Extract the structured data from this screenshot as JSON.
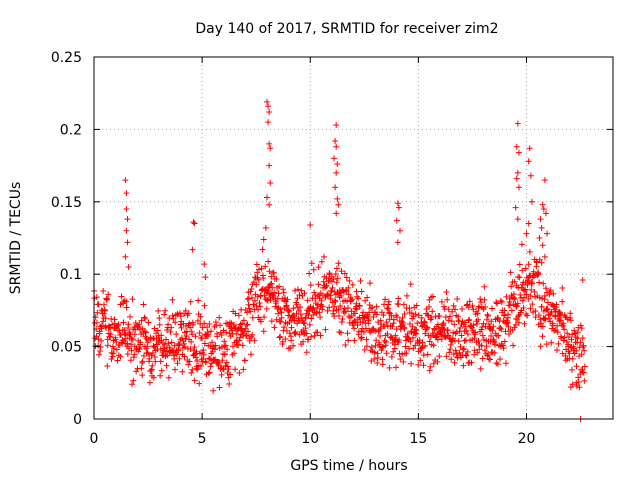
{
  "chart_data": {
    "type": "scatter",
    "title": "Day 140 of 2017, SRMTID for receiver zim2",
    "xlabel": "GPS time / hours",
    "ylabel": "SRMTID / TECUs",
    "xlim": [
      0,
      24
    ],
    "ylim": [
      0,
      0.25
    ],
    "xticks": [
      0,
      5,
      10,
      15,
      20
    ],
    "xtick_labels": [
      "0",
      "5",
      "10",
      "15",
      "20"
    ],
    "yticks": [
      0,
      0.05,
      0.1,
      0.15,
      0.2,
      0.25
    ],
    "ytick_labels": [
      "0",
      "0.05",
      "0.1",
      "0.15",
      "0.2",
      "0.25"
    ],
    "grid": true,
    "marker": "+",
    "series": [
      {
        "name": "SRMTID",
        "color": "#ff0000",
        "profile": [
          [
            0.0,
            0.064
          ],
          [
            0.5,
            0.068
          ],
          [
            1.0,
            0.058
          ],
          [
            1.5,
            0.062
          ],
          [
            2.0,
            0.052
          ],
          [
            2.5,
            0.046
          ],
          [
            3.0,
            0.05
          ],
          [
            3.5,
            0.055
          ],
          [
            4.0,
            0.057
          ],
          [
            4.5,
            0.053
          ],
          [
            5.0,
            0.052
          ],
          [
            5.5,
            0.045
          ],
          [
            6.0,
            0.047
          ],
          [
            6.5,
            0.053
          ],
          [
            7.0,
            0.058
          ],
          [
            7.5,
            0.08
          ],
          [
            8.0,
            0.092
          ],
          [
            8.5,
            0.078
          ],
          [
            9.0,
            0.066
          ],
          [
            9.5,
            0.068
          ],
          [
            10.0,
            0.072
          ],
          [
            10.5,
            0.082
          ],
          [
            11.0,
            0.088
          ],
          [
            11.5,
            0.08
          ],
          [
            12.0,
            0.073
          ],
          [
            12.5,
            0.065
          ],
          [
            13.0,
            0.062
          ],
          [
            13.5,
            0.06
          ],
          [
            14.0,
            0.063
          ],
          [
            14.5,
            0.06
          ],
          [
            15.0,
            0.058
          ],
          [
            15.5,
            0.063
          ],
          [
            16.0,
            0.062
          ],
          [
            16.5,
            0.06
          ],
          [
            17.0,
            0.058
          ],
          [
            17.5,
            0.063
          ],
          [
            18.0,
            0.06
          ],
          [
            18.5,
            0.058
          ],
          [
            19.0,
            0.063
          ],
          [
            19.5,
            0.082
          ],
          [
            20.0,
            0.092
          ],
          [
            20.5,
            0.088
          ],
          [
            21.0,
            0.075
          ],
          [
            21.5,
            0.065
          ],
          [
            22.0,
            0.05
          ],
          [
            22.5,
            0.042
          ],
          [
            22.7,
            0.04
          ]
        ],
        "spikes": [
          [
            1.45,
            0.165
          ],
          [
            1.5,
            0.156
          ],
          [
            1.5,
            0.145
          ],
          [
            1.55,
            0.138
          ],
          [
            1.5,
            0.13
          ],
          [
            1.55,
            0.122
          ],
          [
            1.6,
            0.105
          ],
          [
            1.45,
            0.112
          ],
          [
            4.6,
            0.136
          ],
          [
            4.65,
            0.135
          ],
          [
            4.55,
            0.117
          ],
          [
            5.1,
            0.107
          ],
          [
            5.15,
            0.098
          ],
          [
            8.0,
            0.219
          ],
          [
            8.05,
            0.216
          ],
          [
            8.1,
            0.212
          ],
          [
            8.05,
            0.205
          ],
          [
            8.1,
            0.19
          ],
          [
            8.15,
            0.187
          ],
          [
            8.1,
            0.175
          ],
          [
            8.15,
            0.163
          ],
          [
            8.0,
            0.153
          ],
          [
            8.1,
            0.148
          ],
          [
            7.95,
            0.132
          ],
          [
            7.85,
            0.124
          ],
          [
            11.2,
            0.203
          ],
          [
            11.15,
            0.192
          ],
          [
            11.2,
            0.188
          ],
          [
            11.1,
            0.18
          ],
          [
            11.25,
            0.176
          ],
          [
            11.2,
            0.17
          ],
          [
            11.15,
            0.16
          ],
          [
            11.25,
            0.152
          ],
          [
            11.3,
            0.148
          ],
          [
            11.2,
            0.142
          ],
          [
            10.0,
            0.134
          ],
          [
            14.05,
            0.149
          ],
          [
            14.1,
            0.146
          ],
          [
            14.0,
            0.137
          ],
          [
            14.15,
            0.13
          ],
          [
            14.05,
            0.122
          ],
          [
            19.6,
            0.204
          ],
          [
            19.55,
            0.188
          ],
          [
            19.65,
            0.184
          ],
          [
            19.6,
            0.17
          ],
          [
            19.55,
            0.166
          ],
          [
            19.65,
            0.16
          ],
          [
            19.5,
            0.146
          ],
          [
            19.6,
            0.138
          ],
          [
            20.15,
            0.187
          ],
          [
            20.1,
            0.178
          ],
          [
            20.2,
            0.168
          ],
          [
            20.25,
            0.15
          ],
          [
            20.1,
            0.135
          ],
          [
            20.0,
            0.128
          ],
          [
            20.85,
            0.165
          ],
          [
            20.75,
            0.148
          ],
          [
            20.8,
            0.145
          ],
          [
            20.9,
            0.142
          ],
          [
            20.65,
            0.138
          ],
          [
            20.7,
            0.132
          ],
          [
            20.95,
            0.128
          ],
          [
            20.6,
            0.125
          ],
          [
            20.75,
            0.12
          ],
          [
            20.85,
            0.112
          ],
          [
            20.7,
            0.108
          ],
          [
            20.55,
            0.1
          ],
          [
            22.6,
            0.096
          ],
          [
            22.5,
            0.0
          ],
          [
            22.3,
            0.025
          ],
          [
            22.05,
            0.022
          ]
        ]
      }
    ]
  }
}
